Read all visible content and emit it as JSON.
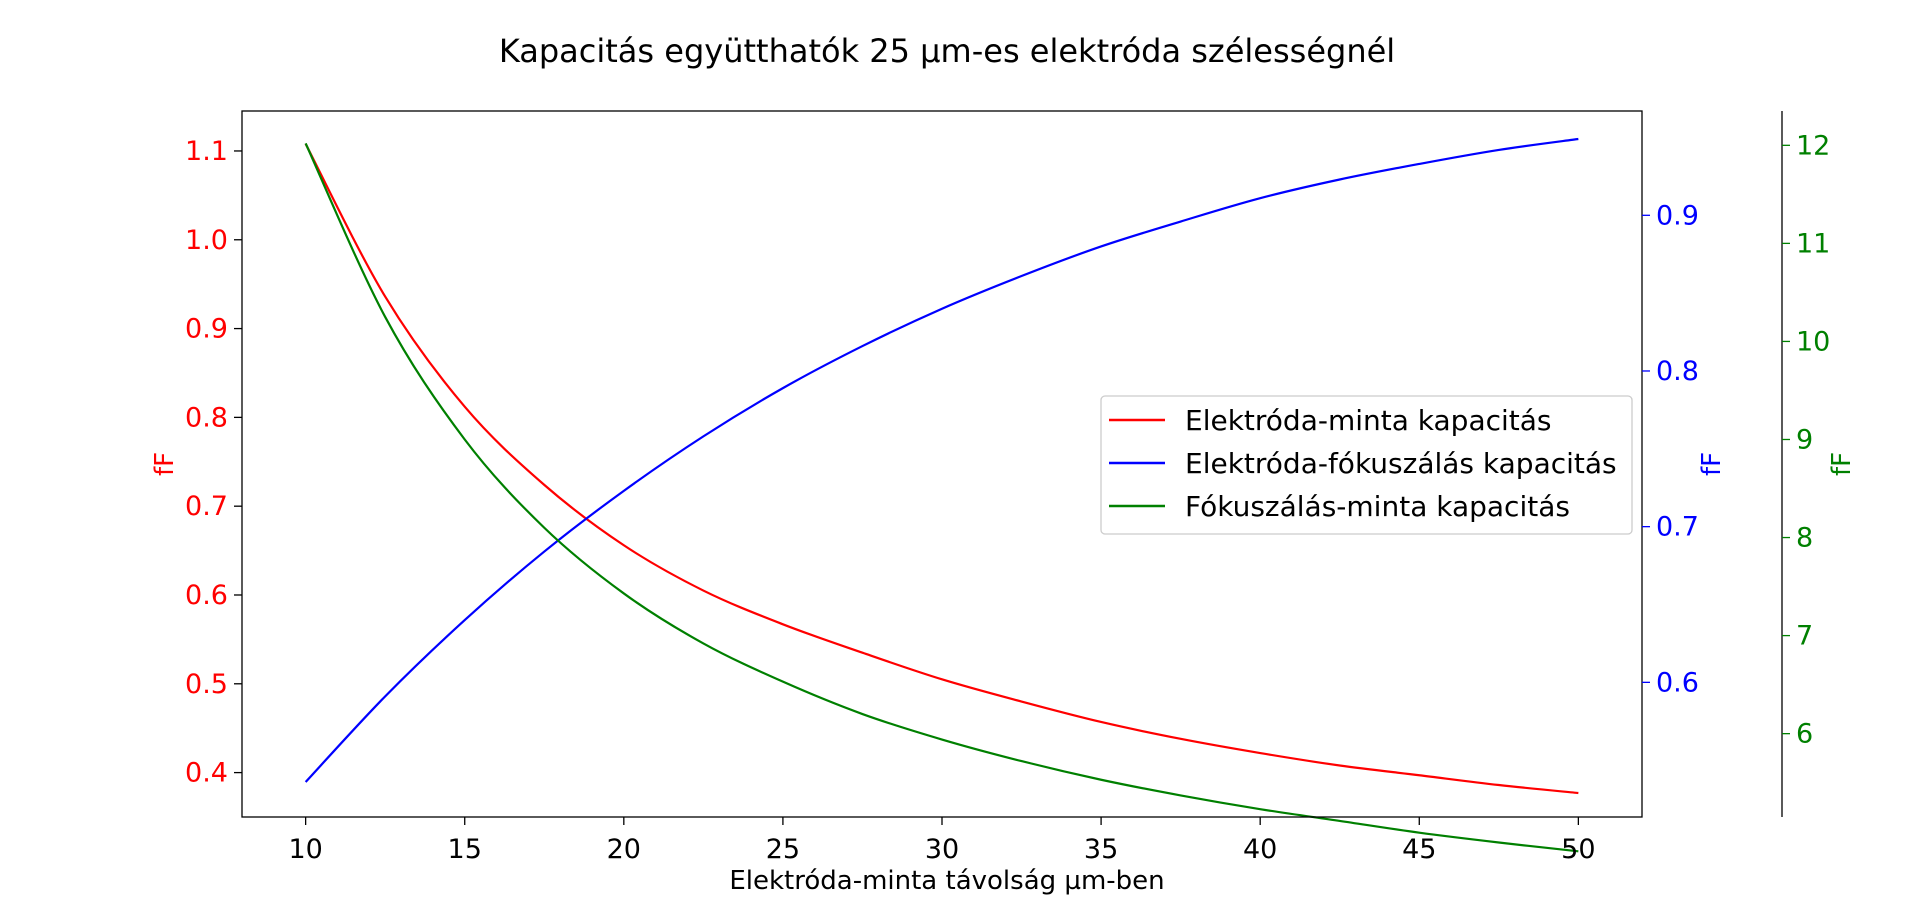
{
  "chart_data": {
    "type": "line",
    "title": "Kapacitás együtthatók 25 µm-es elektróda szélességnél",
    "xlabel": "Elektróda-minta távolság µm-ben",
    "x_ticks": [
      10,
      15,
      20,
      25,
      30,
      35,
      40,
      45,
      50
    ],
    "xlim": [
      8,
      52
    ],
    "x": [
      10,
      12.5,
      15,
      17.5,
      20,
      22.5,
      25,
      27.5,
      30,
      32.5,
      35,
      37.5,
      40,
      42.5,
      45,
      47.5,
      50
    ],
    "axes": [
      {
        "id": "left",
        "label": "fF",
        "color": "#ff0000",
        "ylim": [
          0.35,
          1.145
        ],
        "ticks": [
          0.4,
          0.5,
          0.6,
          0.7,
          0.8,
          0.9,
          1.0,
          1.1
        ]
      },
      {
        "id": "right1",
        "label": "fF",
        "color": "#0000ff",
        "ylim": [
          0.5135,
          0.967
        ],
        "ticks": [
          0.6,
          0.7,
          0.8,
          0.9
        ]
      },
      {
        "id": "right2",
        "label": "fF",
        "color": "#008000",
        "ylim": [
          5.15,
          12.35
        ],
        "ticks": [
          6,
          7,
          8,
          9,
          10,
          11,
          12
        ]
      }
    ],
    "series": [
      {
        "name": "Elektróda-minta kapacitás",
        "axis": "left",
        "color": "#ff0000",
        "values": [
          1.108,
          0.936,
          0.812,
          0.724,
          0.656,
          0.605,
          0.567,
          0.535,
          0.505,
          0.48,
          0.457,
          0.438,
          0.422,
          0.408,
          0.397,
          0.386,
          0.377
        ]
      },
      {
        "name": "Elektróda-fókuszálás kapacitás",
        "axis": "right1",
        "color": "#0000ff",
        "values": [
          0.536,
          0.591,
          0.64,
          0.684,
          0.723,
          0.758,
          0.789,
          0.816,
          0.84,
          0.861,
          0.88,
          0.896,
          0.911,
          0.923,
          0.933,
          0.942,
          0.949
        ]
      },
      {
        "name": "Fókuszálás-minta kapacitás",
        "axis": "right2",
        "color": "#008000",
        "values": [
          12.02,
          10.25,
          9.0,
          8.1,
          7.43,
          6.92,
          6.53,
          6.2,
          5.94,
          5.72,
          5.53,
          5.37,
          5.23,
          5.11,
          4.99,
          4.89,
          4.8
        ]
      }
    ],
    "legend_position": "center-right",
    "grid": false
  }
}
